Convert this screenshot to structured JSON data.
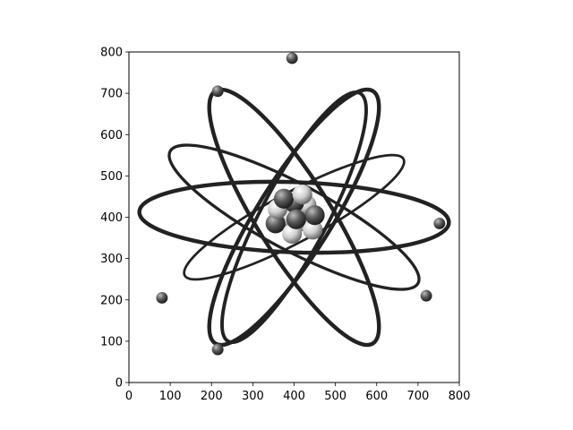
{
  "chart_data": {
    "type": "image",
    "title": "",
    "xlabel": "",
    "ylabel": "",
    "xlim": [
      0,
      800
    ],
    "ylim": [
      800,
      0
    ],
    "y_axis_inverted": true,
    "grid": false,
    "x_ticks": [
      "0",
      "100",
      "200",
      "300",
      "400",
      "500",
      "600",
      "700",
      "800"
    ],
    "y_ticks": [
      "0",
      "100",
      "200",
      "300",
      "400",
      "500",
      "600",
      "700",
      "800"
    ],
    "image_subject": "atom-illustration",
    "colors": {
      "orbit": "#222222",
      "nucleus_light": "#d8d8d8",
      "nucleus_dark": "#555555",
      "electron": "#444444",
      "background": "#ffffff"
    }
  }
}
